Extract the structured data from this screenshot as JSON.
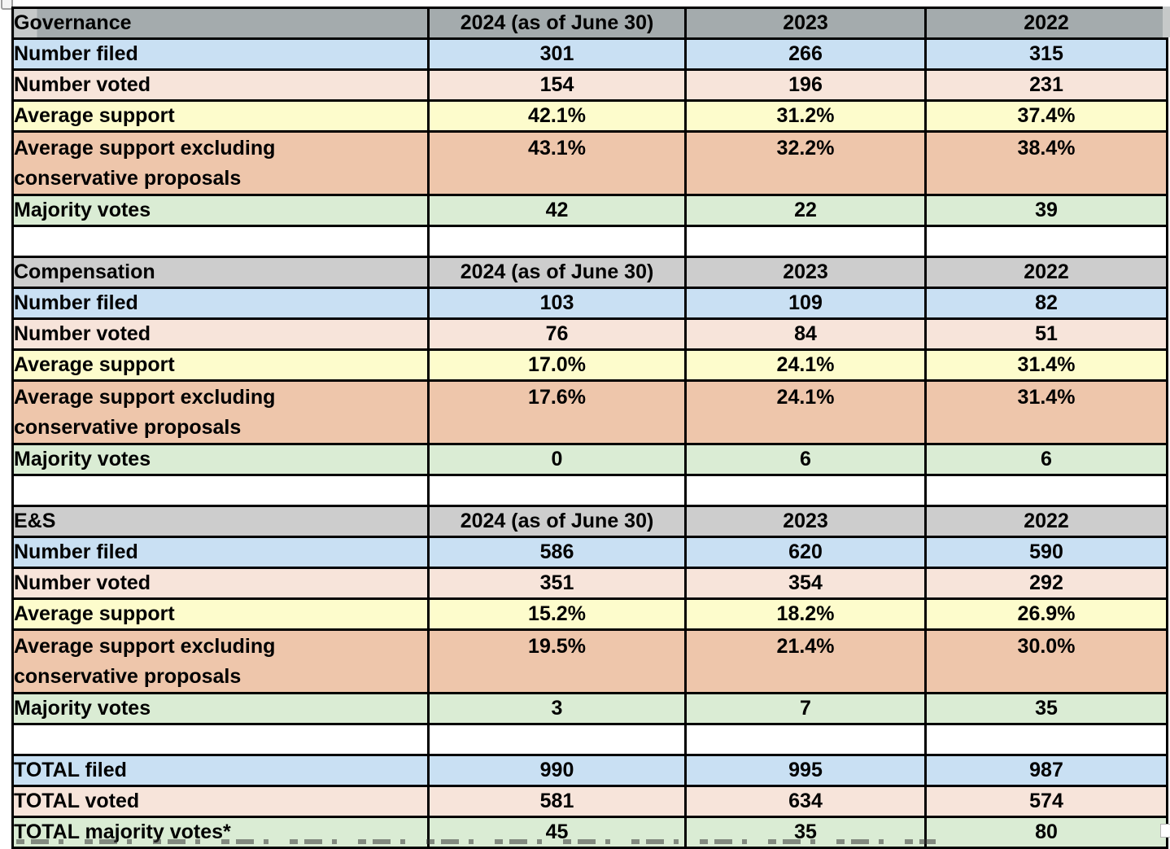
{
  "colors": {
    "border": "#000000",
    "header_first_bg": "#a4abad",
    "header_bg": "#cdcdcd",
    "adjacent_cell_gray": "#c6c9c9",
    "blue": "#c9e0f3",
    "pink": "#f7e4da",
    "yellow": "#fdfccc",
    "orange": "#eec6ab",
    "green": "#daecd4",
    "text": "#000000"
  },
  "chart_data": {
    "type": "table",
    "columns": [
      "2024 (as of June 30)",
      "2023",
      "2022"
    ],
    "sections": [
      {
        "title": "Governance",
        "rows": [
          {
            "label_lines": [
              "Number filed"
            ],
            "values": [
              "301",
              "266",
              "315"
            ],
            "bg": "blue",
            "tall": false
          },
          {
            "label_lines": [
              "Number voted"
            ],
            "values": [
              "154",
              "196",
              "231"
            ],
            "bg": "pink",
            "tall": false
          },
          {
            "label_lines": [
              "Average support"
            ],
            "values": [
              "42.1%",
              "31.2%",
              "37.4%"
            ],
            "bg": "yellow",
            "tall": false
          },
          {
            "label_lines": [
              "Average support excluding",
              "conservative proposals"
            ],
            "values": [
              "43.1%",
              "32.2%",
              "38.4%"
            ],
            "bg": "orange",
            "tall": true
          },
          {
            "label_lines": [
              "Majority votes"
            ],
            "values": [
              "42",
              "22",
              "39"
            ],
            "bg": "green",
            "tall": false
          }
        ]
      },
      {
        "title": "Compensation",
        "rows": [
          {
            "label_lines": [
              "Number filed"
            ],
            "values": [
              "103",
              "109",
              "82"
            ],
            "bg": "blue",
            "tall": false
          },
          {
            "label_lines": [
              "Number voted"
            ],
            "values": [
              "76",
              "84",
              "51"
            ],
            "bg": "pink",
            "tall": false
          },
          {
            "label_lines": [
              "Average support"
            ],
            "values": [
              "17.0%",
              "24.1%",
              "31.4%"
            ],
            "bg": "yellow",
            "tall": false
          },
          {
            "label_lines": [
              "Average support excluding",
              "conservative proposals"
            ],
            "values": [
              "17.6%",
              "24.1%",
              "31.4%"
            ],
            "bg": "orange",
            "tall": true
          },
          {
            "label_lines": [
              "Majority votes"
            ],
            "values": [
              "0",
              "6",
              "6"
            ],
            "bg": "green",
            "tall": false
          }
        ]
      },
      {
        "title": "E&S",
        "rows": [
          {
            "label_lines": [
              "Number filed"
            ],
            "values": [
              "586",
              "620",
              "590"
            ],
            "bg": "blue",
            "tall": false
          },
          {
            "label_lines": [
              "Number voted"
            ],
            "values": [
              "351",
              "354",
              "292"
            ],
            "bg": "pink",
            "tall": false
          },
          {
            "label_lines": [
              "Average support"
            ],
            "values": [
              "15.2%",
              "18.2%",
              "26.9%"
            ],
            "bg": "yellow",
            "tall": false
          },
          {
            "label_lines": [
              "Average support excluding",
              "conservative proposals"
            ],
            "values": [
              "19.5%",
              "21.4%",
              "30.0%"
            ],
            "bg": "orange",
            "tall": true
          },
          {
            "label_lines": [
              "Majority votes"
            ],
            "values": [
              "3",
              "7",
              "35"
            ],
            "bg": "green",
            "tall": false
          }
        ]
      }
    ],
    "totals": [
      {
        "label_lines": [
          "TOTAL filed"
        ],
        "values": [
          "990",
          "995",
          "987"
        ],
        "bg": "blue",
        "tall": false
      },
      {
        "label_lines": [
          "TOTAL voted"
        ],
        "values": [
          "581",
          "634",
          "574"
        ],
        "bg": "pink",
        "tall": false
      },
      {
        "label_lines": [
          "TOTAL majority votes*"
        ],
        "values": [
          "45",
          "35",
          "80"
        ],
        "bg": "green",
        "tall": false
      }
    ]
  }
}
